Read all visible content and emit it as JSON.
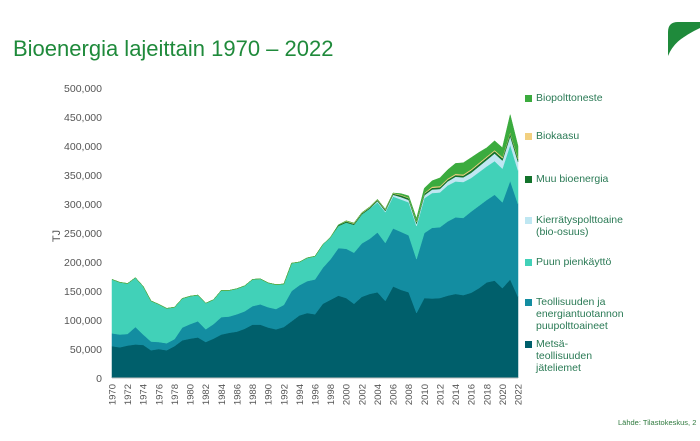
{
  "title": "Bioenergia lajeittain 1970 – 2022",
  "source": "Lähde: Tilastokeskus, 2",
  "chart_data": {
    "type": "area",
    "stacked": true,
    "title": "Bioenergia lajeittain 1970 – 2022",
    "ylabel": "TJ",
    "xlabel": "",
    "ylim": [
      0,
      500000
    ],
    "yticks": [
      "0",
      "50,000",
      "100,000",
      "150,000",
      "200,000",
      "250,000",
      "300,000",
      "350,000",
      "400,000",
      "450,000",
      "500,000"
    ],
    "x": [
      1970,
      1971,
      1972,
      1973,
      1974,
      1975,
      1976,
      1977,
      1978,
      1979,
      1980,
      1981,
      1982,
      1983,
      1984,
      1985,
      1986,
      1987,
      1988,
      1989,
      1990,
      1991,
      1992,
      1993,
      1994,
      1995,
      1996,
      1997,
      1998,
      1999,
      2000,
      2001,
      2002,
      2003,
      2004,
      2005,
      2006,
      2007,
      2008,
      2009,
      2010,
      2011,
      2012,
      2013,
      2014,
      2015,
      2016,
      2017,
      2018,
      2019,
      2020,
      2021,
      2022
    ],
    "xticks": [
      "1970",
      "1972",
      "1974",
      "1976",
      "1978",
      "1980",
      "1982",
      "1984",
      "1986",
      "1988",
      "1990",
      "1992",
      "1994",
      "1996",
      "1998",
      "2000",
      "2002",
      "2004",
      "2006",
      "2008",
      "2010",
      "2012",
      "2014",
      "2016",
      "2018",
      "2020",
      "2022"
    ],
    "grid": false,
    "legend_position": "right",
    "series": [
      {
        "name": "Metsä-teollisuuden jäteliemet",
        "color": "#005f6b",
        "values": [
          55000,
          53000,
          56000,
          58000,
          57000,
          48000,
          50000,
          48000,
          55000,
          65000,
          68000,
          70000,
          62000,
          68000,
          75000,
          78000,
          80000,
          85000,
          92000,
          92000,
          87000,
          84000,
          88000,
          98000,
          108000,
          112000,
          110000,
          128000,
          135000,
          142000,
          138000,
          128000,
          140000,
          145000,
          148000,
          133000,
          158000,
          152000,
          148000,
          112000,
          138000,
          137000,
          138000,
          142000,
          145000,
          143000,
          147000,
          155000,
          165000,
          168000,
          155000,
          170000,
          140000
        ]
      },
      {
        "name": "Teollisuuden ja energiantuotannon puupolttoaineet",
        "color": "#138da1",
        "values": [
          22000,
          22000,
          20000,
          30000,
          18000,
          15000,
          12000,
          12000,
          12000,
          22000,
          25000,
          28000,
          22000,
          25000,
          30000,
          28000,
          30000,
          30000,
          32000,
          35000,
          35000,
          35000,
          38000,
          52000,
          52000,
          55000,
          60000,
          62000,
          70000,
          82000,
          85000,
          88000,
          92000,
          95000,
          103000,
          100000,
          100000,
          100000,
          98000,
          93000,
          112000,
          122000,
          122000,
          128000,
          132000,
          133000,
          140000,
          142000,
          142000,
          148000,
          148000,
          170000,
          160000
        ]
      },
      {
        "name": "Puun pienkäyttö",
        "color": "#41d1b8",
        "values": [
          93000,
          90000,
          87000,
          85000,
          83000,
          70000,
          65000,
          60000,
          55000,
          50000,
          48000,
          45000,
          45000,
          42000,
          46000,
          45000,
          44000,
          44000,
          46000,
          44000,
          42000,
          42000,
          36000,
          48000,
          40000,
          40000,
          40000,
          40000,
          38000,
          38000,
          45000,
          48000,
          50000,
          52000,
          52000,
          53000,
          55000,
          56000,
          57000,
          57000,
          60000,
          60000,
          60000,
          62000,
          62000,
          62000,
          58000,
          58000,
          58000,
          58000,
          58000,
          62000,
          58000
        ]
      },
      {
        "name": "Kierrätyspolttoaine (bio-osuus)",
        "color": "#bfe7f2",
        "values": [
          0,
          0,
          0,
          0,
          0,
          0,
          0,
          0,
          0,
          0,
          0,
          0,
          0,
          0,
          0,
          0,
          0,
          0,
          0,
          0,
          0,
          0,
          0,
          0,
          0,
          0,
          0,
          0,
          0,
          0,
          0,
          0,
          0,
          0,
          2000,
          2000,
          3000,
          4000,
          4000,
          4000,
          5000,
          6000,
          6000,
          7000,
          8000,
          8000,
          9000,
          10000,
          11000,
          13000,
          14000,
          15000,
          15000
        ]
      },
      {
        "name": "Muu bioenergia",
        "color": "#13732b",
        "values": [
          0,
          0,
          0,
          0,
          0,
          0,
          0,
          0,
          0,
          0,
          0,
          0,
          0,
          0,
          0,
          0,
          0,
          0,
          0,
          0,
          0,
          0,
          0,
          0,
          0,
          0,
          0,
          0,
          0,
          2000,
          2000,
          2000,
          2000,
          2000,
          2000,
          2000,
          2000,
          3000,
          3000,
          3000,
          3000,
          3000,
          3000,
          3000,
          3000,
          3000,
          4000,
          4000,
          4000,
          4000,
          4000,
          5000,
          5000
        ]
      },
      {
        "name": "Biokaasu",
        "color": "#f2d080",
        "values": [
          0,
          0,
          0,
          0,
          0,
          0,
          0,
          0,
          0,
          0,
          0,
          0,
          0,
          0,
          0,
          0,
          0,
          0,
          0,
          0,
          0,
          0,
          0,
          0,
          0,
          0,
          0,
          0,
          0,
          0,
          1000,
          1000,
          1000,
          1000,
          1000,
          1000,
          1000,
          1000,
          1000,
          1000,
          1000,
          2000,
          2000,
          2000,
          2000,
          2000,
          2000,
          2000,
          2000,
          2000,
          2000,
          2000,
          2000
        ]
      },
      {
        "name": "Biopolttoneste",
        "color": "#3bab3e",
        "values": [
          0,
          0,
          0,
          0,
          0,
          0,
          0,
          0,
          0,
          0,
          0,
          0,
          0,
          0,
          0,
          0,
          0,
          0,
          0,
          0,
          0,
          0,
          0,
          0,
          0,
          0,
          0,
          0,
          0,
          0,
          0,
          0,
          0,
          0,
          0,
          0,
          0,
          2000,
          3000,
          5000,
          8000,
          10000,
          14000,
          15000,
          18000,
          20000,
          20000,
          18000,
          15000,
          16000,
          16000,
          30000,
          20000
        ]
      }
    ]
  },
  "legend": [
    {
      "label": "Biopolttoneste",
      "color": "#3bab3e"
    },
    {
      "label": "Biokaasu",
      "color": "#f2d080"
    },
    {
      "label": "Muu bioenergia",
      "color": "#13732b"
    },
    {
      "label": "Kierrätyspolttoaine\n(bio-osuus)",
      "color": "#bfe7f2"
    },
    {
      "label": "Puun pienkäyttö",
      "color": "#41d1b8"
    },
    {
      "label": "Teollisuuden ja\nenergiantuotannon\npuupolttoaineet",
      "color": "#138da1"
    },
    {
      "label": "Metsä-\nteollisuuden\njäteliemet",
      "color": "#005f6b"
    }
  ]
}
